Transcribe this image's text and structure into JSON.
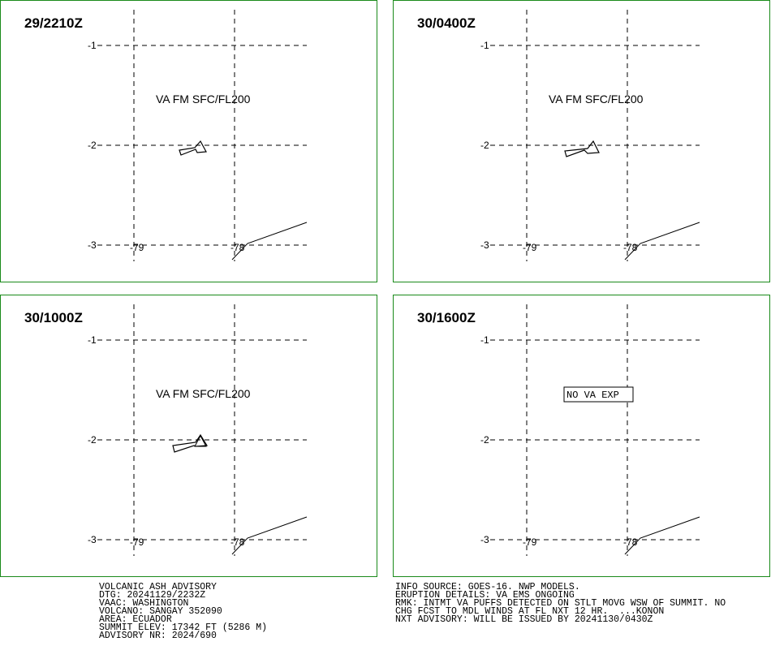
{
  "grid": {
    "lat_labels": [
      "-1",
      "-2",
      "-3"
    ],
    "lon_labels": [
      "-79",
      "-78"
    ]
  },
  "panels": [
    {
      "time": "29/2210Z",
      "annotation": "VA FM SFC/FL200"
    },
    {
      "time": "30/0400Z",
      "annotation": "VA FM SFC/FL200"
    },
    {
      "time": "30/1000Z",
      "annotation": "VA FM SFC/FL200"
    },
    {
      "time": "30/1600Z",
      "boxed_annotation": "NO VA EXP"
    }
  ],
  "footer": {
    "left": [
      "VOLCANIC ASH ADVISORY",
      "DTG: 20241129/2232Z",
      "VAAC: WASHINGTON",
      "VOLCANO: SANGAY 352090",
      "AREA: ECUADOR",
      "SUMMIT ELEV: 17342 FT (5286 M)",
      "ADVISORY NR: 2024/690"
    ],
    "right": [
      "INFO SOURCE: GOES-16. NWP MODELS.",
      "ERUPTION DETAILS: VA EMS ONGOING",
      "RMK: INTMT VA PUFFS DETECTED ON STLT MOVG WSW OF SUMMIT. NO",
      "CHG FCST TO MDL WINDS AT FL NXT 12 HR.  ...KONON",
      "NXT ADVISORY: WILL BE ISSUED BY 20241130/0430Z"
    ]
  }
}
